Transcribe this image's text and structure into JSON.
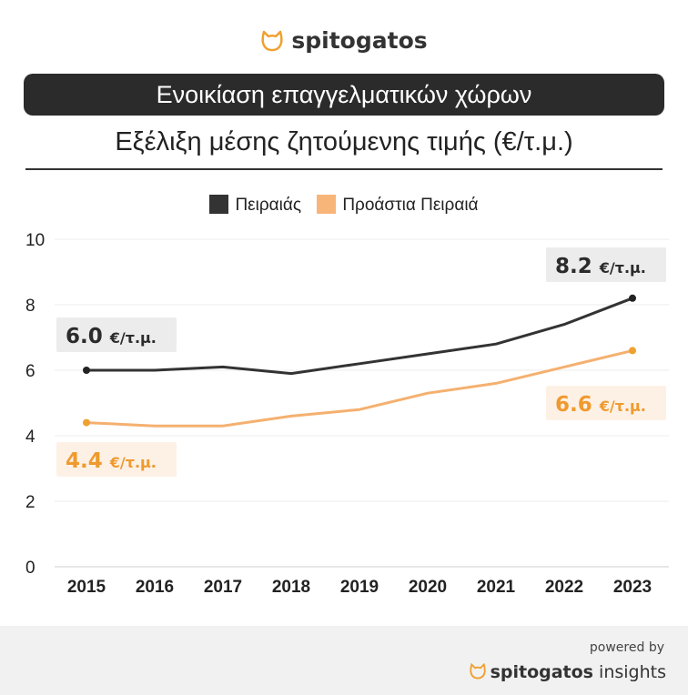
{
  "brand": "spitogatos",
  "banner_title": "Ενοικίαση επαγγελματικών χώρων",
  "subtitle": "Εξέλιξη μέσης ζητούμενης τιμής (€/τ.μ.)",
  "colors": {
    "piraeus": "#333333",
    "suburbs": "#f5b06f",
    "suburbs_label": "#ef9a2e",
    "accent": "#f0a030"
  },
  "footer": {
    "powered_by": "powered by",
    "brand": "spitogatos",
    "suffix": "insights"
  },
  "chart_data": {
    "type": "line",
    "title": "Εξέλιξη μέσης ζητούμενης τιμής (€/τ.μ.)",
    "categories": [
      "2015",
      "2016",
      "2017",
      "2018",
      "2019",
      "2020",
      "2021",
      "2022",
      "2023"
    ],
    "series": [
      {
        "name": "Πειραιάς",
        "values": [
          6.0,
          6.0,
          6.1,
          5.9,
          6.2,
          6.5,
          6.8,
          7.4,
          8.2
        ]
      },
      {
        "name": "Προάστια Πειραιά",
        "values": [
          4.4,
          4.3,
          4.3,
          4.6,
          4.8,
          5.3,
          5.6,
          6.1,
          6.6
        ]
      }
    ],
    "annotations": [
      {
        "series": 0,
        "point": 0,
        "value": "6.0",
        "unit": "€/τ.μ."
      },
      {
        "series": 0,
        "point": 8,
        "value": "8.2",
        "unit": "€/τ.μ."
      },
      {
        "series": 1,
        "point": 0,
        "value": "4.4",
        "unit": "€/τ.μ."
      },
      {
        "series": 1,
        "point": 8,
        "value": "6.6",
        "unit": "€/τ.μ."
      }
    ],
    "yticks": [
      "0",
      "2",
      "4",
      "6",
      "8",
      "10"
    ],
    "ylim": [
      0,
      10
    ],
    "grid": true,
    "legend": "top-center"
  }
}
